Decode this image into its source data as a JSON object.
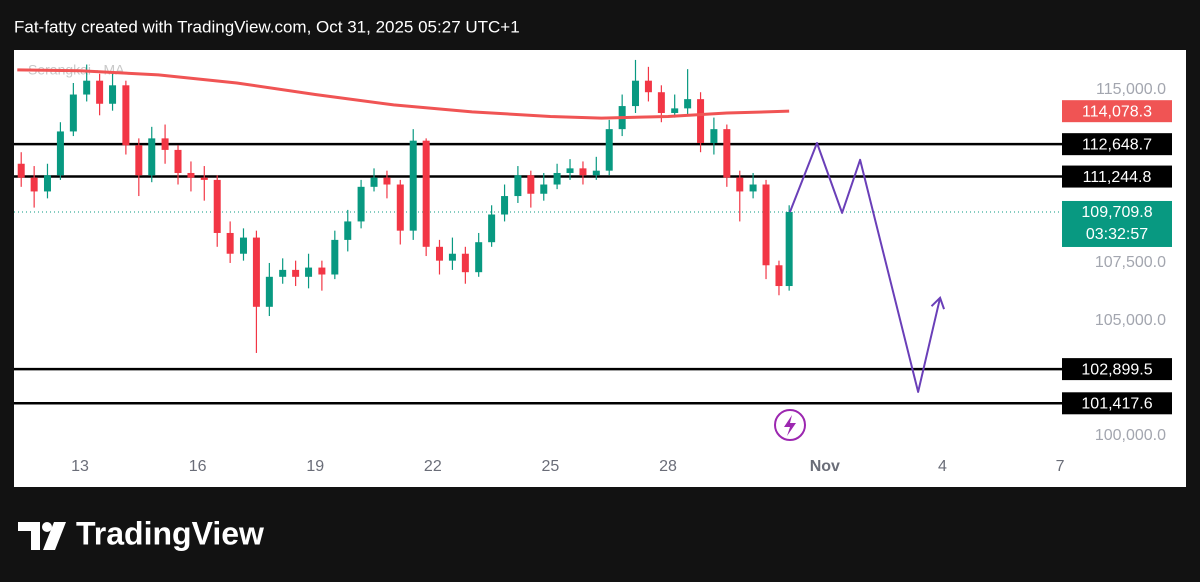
{
  "header": "Fat-fatty created with TradingView.com, Oct 31, 2025 05:27 UTC+1",
  "brand": "TradingView",
  "chart_data": {
    "type": "candlestick",
    "indicator_label": "Serangkai · MA",
    "x": [
      11.5,
      11.83,
      12.17,
      12.5,
      12.83,
      13.17,
      13.5,
      13.83,
      14.17,
      14.5,
      14.83,
      15.17,
      15.5,
      15.83,
      16.17,
      16.5,
      16.83,
      17.17,
      17.5,
      17.83,
      18.17,
      18.5,
      18.83,
      19.17,
      19.5,
      19.83,
      20.17,
      20.5,
      20.83,
      21.17,
      21.5,
      21.83,
      22.17,
      22.5,
      22.83,
      23.17,
      23.5,
      23.83,
      24.17,
      24.5,
      24.83,
      25.17,
      25.5,
      25.83,
      26.17,
      26.5,
      26.83,
      27.17,
      27.5,
      27.83,
      28.17,
      28.5,
      28.83,
      29.17,
      29.5,
      29.83,
      30.17,
      30.5,
      30.83,
      31.09
    ],
    "open": [
      111800,
      111200,
      110600,
      111300,
      113200,
      114800,
      115400,
      114400,
      115200,
      112600,
      111300,
      112900,
      112400,
      111400,
      111200,
      111100,
      108800,
      107900,
      108600,
      105600,
      106900,
      107200,
      106900,
      107300,
      107000,
      108500,
      109300,
      110800,
      111200,
      110900,
      108900,
      112800,
      108200,
      107600,
      107900,
      107100,
      108400,
      109600,
      110400,
      111300,
      110500,
      110900,
      111400,
      111600,
      111300,
      111500,
      113300,
      114300,
      115400,
      114900,
      114000,
      114200,
      114600,
      112700,
      113300,
      111200,
      110600,
      110900,
      107400,
      106500
    ],
    "high": [
      112300,
      111700,
      111800,
      113600,
      115300,
      116100,
      115700,
      115800,
      115400,
      112900,
      113400,
      113500,
      112600,
      111900,
      111700,
      111300,
      109300,
      109000,
      108900,
      107500,
      107700,
      107600,
      107900,
      107600,
      108900,
      109800,
      111100,
      111600,
      111500,
      111100,
      113300,
      112900,
      108500,
      108600,
      108200,
      108800,
      110000,
      110900,
      111700,
      111500,
      111400,
      111800,
      112000,
      111900,
      112100,
      113700,
      114800,
      116300,
      116000,
      115200,
      114800,
      115900,
      114900,
      113800,
      113500,
      111500,
      111400,
      111100,
      107600,
      110000
    ],
    "low": [
      110800,
      109900,
      110300,
      111100,
      113000,
      114500,
      113900,
      114100,
      112200,
      110400,
      111000,
      111800,
      110900,
      110600,
      110200,
      108200,
      107500,
      107600,
      103600,
      105200,
      106600,
      106500,
      106400,
      106300,
      106800,
      108000,
      109000,
      110600,
      110300,
      108300,
      108500,
      107800,
      107000,
      107200,
      106600,
      106900,
      108200,
      109300,
      110100,
      109900,
      110200,
      110700,
      111100,
      110900,
      111100,
      111300,
      113000,
      114000,
      114500,
      113600,
      113800,
      113900,
      112300,
      112200,
      110800,
      109300,
      110300,
      106800,
      106100,
      106300
    ],
    "close": [
      111200,
      110600,
      111300,
      113200,
      114800,
      115400,
      114400,
      115200,
      112600,
      111300,
      112900,
      112400,
      111400,
      111200,
      111100,
      108800,
      107900,
      108600,
      105600,
      106900,
      107200,
      106900,
      107300,
      107000,
      108500,
      109300,
      110800,
      111200,
      110900,
      108900,
      112800,
      108200,
      107600,
      107900,
      107100,
      108400,
      109600,
      110400,
      111300,
      110500,
      110900,
      111400,
      111600,
      111300,
      111500,
      113300,
      114300,
      115400,
      114900,
      114000,
      114200,
      114600,
      112700,
      113300,
      111200,
      110600,
      110900,
      107400,
      106500,
      109709.8
    ],
    "up_color": "#089981",
    "down_color": "#f23645",
    "xlim": [
      11.316,
      38.05
    ],
    "xticks": [
      13,
      16,
      19,
      22,
      25,
      28,
      {
        "value": 32,
        "label": "Nov"
      },
      {
        "value": 35,
        "label": "4"
      },
      {
        "value": 38,
        "label": "7"
      }
    ],
    "ylim": [
      97790,
      116730
    ],
    "yticks": [
      {
        "value": 115000,
        "label": "115,000.0"
      },
      {
        "value": 107500,
        "label": "107,500.0"
      },
      {
        "value": 105000,
        "label": "105,000.0"
      },
      {
        "value": 100000,
        "label": "100,000.0"
      }
    ],
    "ma": {
      "color": "#f05454",
      "x": [
        11.4,
        13,
        15,
        17,
        19,
        21,
        23,
        25,
        26.3,
        28,
        29.5,
        31.09
      ],
      "values": [
        115870,
        115830,
        115650,
        115300,
        114800,
        114350,
        114050,
        113850,
        113780,
        113850,
        114000,
        114078.3
      ],
      "last_label": "114,078.3"
    },
    "levels": {
      "color": "#000000",
      "values": [
        112648.7,
        111244.8,
        102899.5,
        101417.6
      ],
      "value_labels": [
        "112,648.7",
        "111,244.8",
        "102,899.5",
        "101,417.6"
      ]
    },
    "last_price": {
      "value": 109709.8,
      "label": "109,709.8",
      "countdown": "03:32:57",
      "color": "#089981"
    },
    "projection": {
      "color": "#6a3fb8",
      "x": [
        31.11,
        31.8,
        32.44,
        32.9,
        34.38,
        34.94
      ],
      "values": [
        109709.8,
        112700,
        109670,
        111970,
        101910,
        105990
      ]
    }
  }
}
